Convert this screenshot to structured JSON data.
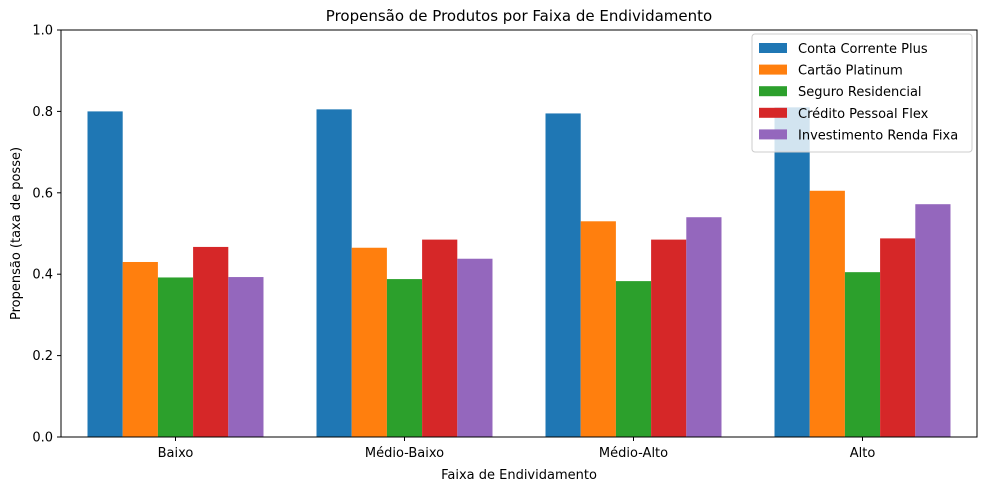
{
  "chart_data": {
    "type": "bar",
    "title": "Propensão de Produtos por Faixa de Endividamento",
    "xlabel": "Faixa de Endividamento",
    "ylabel": "Propensão (taxa de posse)",
    "ylim": [
      0,
      1.0
    ],
    "yticks": [
      "0.0",
      "0.2",
      "0.4",
      "0.6",
      "0.8",
      "1.0"
    ],
    "grid": false,
    "legend_position": "top-right",
    "categories": [
      "Baixo",
      "Médio-Baixo",
      "Médio-Alto",
      "Alto"
    ],
    "series": [
      {
        "name": "Conta Corrente Plus",
        "color": "#1f77b4",
        "values": [
          0.8,
          0.805,
          0.795,
          0.81
        ]
      },
      {
        "name": "Cartão Platinum",
        "color": "#ff7f0e",
        "values": [
          0.43,
          0.465,
          0.53,
          0.605
        ]
      },
      {
        "name": "Seguro Residencial",
        "color": "#2ca02c",
        "values": [
          0.392,
          0.388,
          0.383,
          0.405
        ]
      },
      {
        "name": "Crédito Pessoal Flex",
        "color": "#d62728",
        "values": [
          0.467,
          0.485,
          0.485,
          0.488
        ]
      },
      {
        "name": "Investimento Renda Fixa",
        "color": "#9467bd",
        "values": [
          0.393,
          0.438,
          0.54,
          0.572
        ]
      }
    ]
  }
}
